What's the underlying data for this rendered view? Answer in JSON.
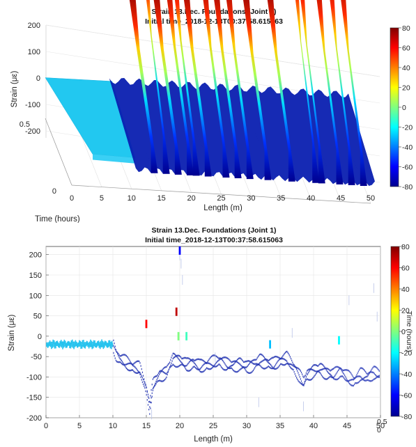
{
  "chart_data": [
    {
      "type": "surface",
      "title": "Strain 13.Dec. Foundations (Joint 1)",
      "subtitle": "Initial time_2018-12-13T00:37:58.615063",
      "xlabel": "Length (m)",
      "ylabel": "Time (hours)",
      "zlabel": "Strain (με)",
      "xlim": [
        0,
        50
      ],
      "ylim": [
        0,
        0.5
      ],
      "zlim": [
        -200,
        200
      ],
      "x_ticks": [
        "0",
        "5",
        "10",
        "15",
        "20",
        "25",
        "30",
        "35",
        "40",
        "45",
        "50"
      ],
      "y_ticks": [
        "0",
        "0.5"
      ],
      "z_ticks": [
        "200",
        "100",
        "0",
        "-100",
        "-200"
      ],
      "colorbar": {
        "min": -80,
        "max": 80,
        "ticks": [
          "80",
          "60",
          "40",
          "20",
          "0",
          "-20",
          "-40",
          "-60",
          "-80"
        ]
      },
      "grid": true,
      "profile": {
        "baseline_x": [
          0,
          10
        ],
        "baseline_strain": -20,
        "peaks": [
          {
            "x": 13,
            "strain": 40
          },
          {
            "x": 15,
            "strain": 150
          },
          {
            "x": 17,
            "strain": 50
          },
          {
            "x": 19,
            "strain": 80
          },
          {
            "x": 20,
            "strain": 120
          },
          {
            "x": 22,
            "strain": 60
          },
          {
            "x": 25,
            "strain": 90
          },
          {
            "x": 27,
            "strain": 70
          },
          {
            "x": 29,
            "strain": 80
          },
          {
            "x": 32,
            "strain": 60
          },
          {
            "x": 36,
            "strain": 70
          },
          {
            "x": 40,
            "strain": 170
          },
          {
            "x": 41,
            "strain": 150
          },
          {
            "x": 44,
            "strain": 110
          },
          {
            "x": 46,
            "strain": 140
          },
          {
            "x": 48,
            "strain": 120
          }
        ]
      }
    },
    {
      "type": "scatter",
      "title": "Strain 13.Dec. Foundations (Joint 1)",
      "subtitle": "Initial time_2018-12-13T00:37:58.615063",
      "xlabel": "Length (m)",
      "ylabel": "Strain (με)",
      "colorbar_label": "Time (hours)",
      "xlim": [
        0,
        50
      ],
      "ylim": [
        -200,
        220
      ],
      "x_ticks": [
        "0",
        "5",
        "10",
        "15",
        "20",
        "25",
        "30",
        "35",
        "40",
        "45",
        "50"
      ],
      "y_ticks": [
        "200",
        "150",
        "100",
        "50",
        "0",
        "-50",
        "-100",
        "-150",
        "-200"
      ],
      "corner_labels": [
        "0.5",
        "0"
      ],
      "colorbar": {
        "min": -80,
        "max": 80,
        "ticks": [
          "80",
          "60",
          "40",
          "20",
          "0",
          "-20",
          "-40",
          "-60",
          "-80"
        ]
      },
      "grid": true,
      "series": [
        {
          "x": [
            0,
            1,
            2,
            3,
            4,
            5,
            6,
            7,
            8,
            9,
            10,
            10.5,
            11,
            12,
            13,
            14,
            15,
            15.5,
            16,
            17,
            18,
            19,
            20,
            21,
            22,
            23,
            24,
            25,
            26,
            27,
            28,
            29,
            30,
            31,
            32,
            33,
            34,
            35,
            36,
            37,
            38,
            38.5,
            39,
            40,
            41,
            42,
            43,
            44,
            45,
            46,
            47,
            48,
            49,
            50
          ],
          "y": [
            -18,
            -20,
            -19,
            -21,
            -20,
            -19,
            -20,
            -21,
            -20,
            -19,
            -20,
            -45,
            -55,
            -65,
            -75,
            -80,
            -130,
            -175,
            -120,
            -95,
            -90,
            -55,
            -60,
            -70,
            -65,
            -75,
            -70,
            -65,
            -60,
            -70,
            -72,
            -68,
            -75,
            -70,
            -60,
            -65,
            -70,
            -60,
            -55,
            -75,
            -100,
            -115,
            -95,
            -85,
            -80,
            -90,
            -95,
            -85,
            -100,
            -110,
            -95,
            -100,
            -90,
            -95
          ]
        }
      ],
      "highlights": [
        {
          "x": 15,
          "y": 30,
          "value": 60
        },
        {
          "x": 19.5,
          "y": 60,
          "value": 70
        },
        {
          "x": 20,
          "y": 210,
          "value": -60
        },
        {
          "x": 19.8,
          "y": 0,
          "value": 0
        },
        {
          "x": 21,
          "y": 0,
          "value": -10
        },
        {
          "x": 43.8,
          "y": -10,
          "value": -20
        },
        {
          "x": 33.5,
          "y": -20,
          "value": -30
        }
      ]
    }
  ]
}
